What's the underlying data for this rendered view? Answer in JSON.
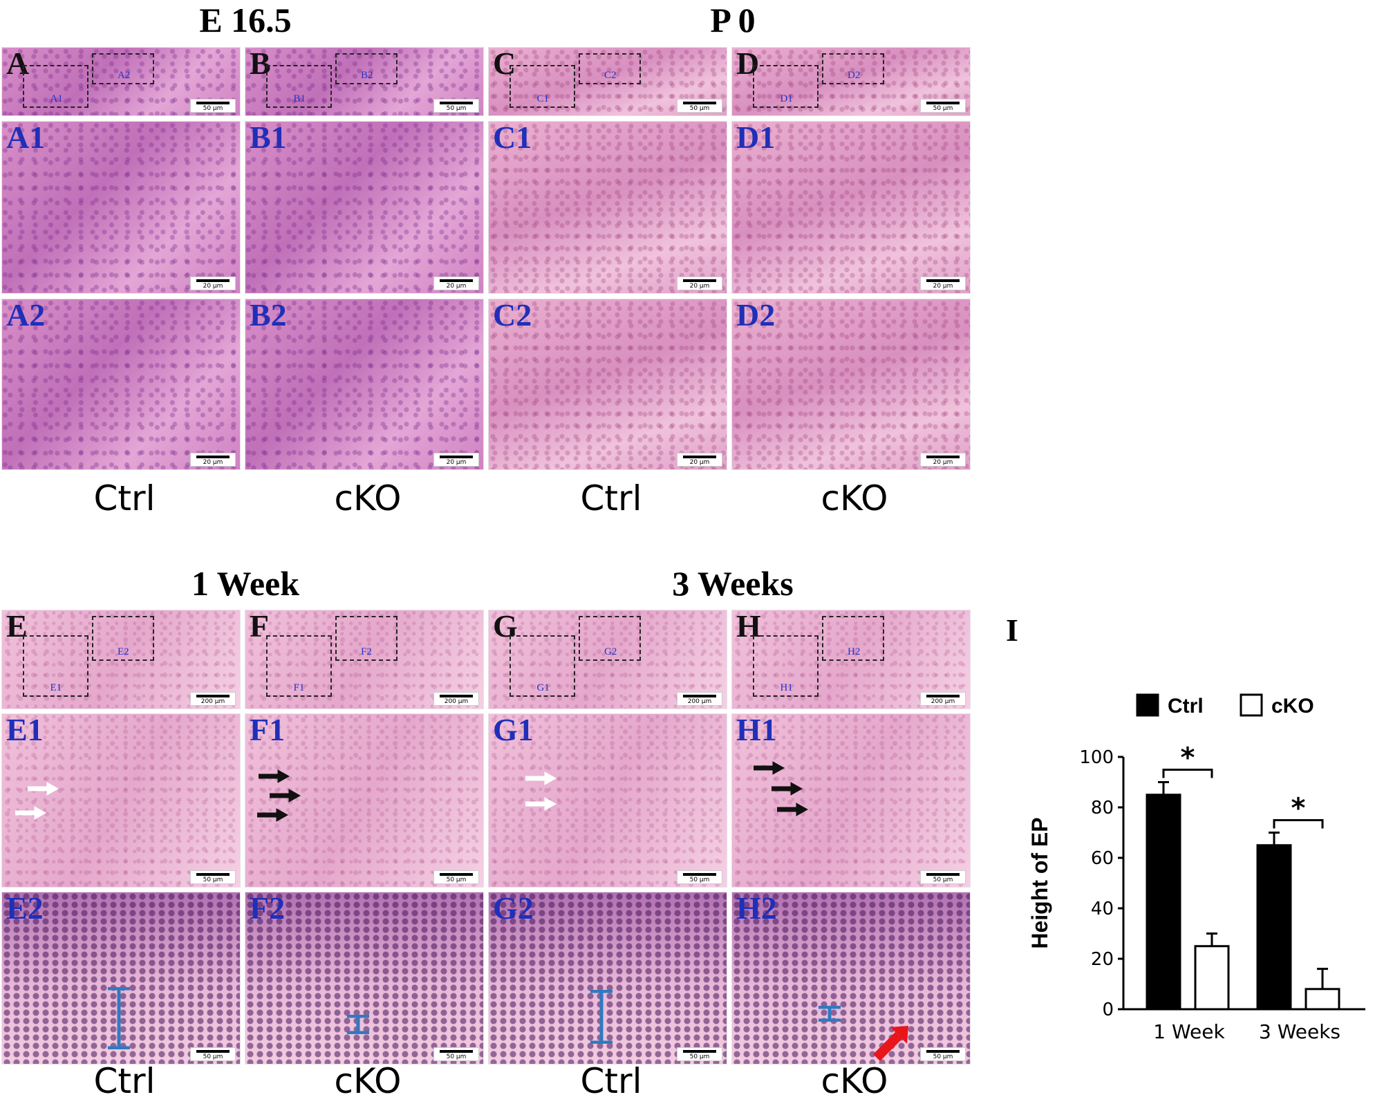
{
  "headings": {
    "top_left": "E 16.5",
    "top_right": "P 0",
    "bottom_left": "1 Week",
    "bottom_right": "3 Weeks"
  },
  "condition_labels": {
    "row1": [
      "Ctrl",
      "cKO",
      "Ctrl",
      "cKO"
    ],
    "row2": [
      "Ctrl",
      "cKO",
      "Ctrl",
      "cKO"
    ]
  },
  "panels_top": [
    {
      "col": 0,
      "row": 0,
      "letter": "A",
      "roi": [
        "A1",
        "A2"
      ],
      "scale": "50 µm"
    },
    {
      "col": 1,
      "row": 0,
      "letter": "B",
      "roi": [
        "B1",
        "B2"
      ],
      "scale": "50 µm"
    },
    {
      "col": 2,
      "row": 0,
      "letter": "C",
      "roi": [
        "C1",
        "C2"
      ],
      "scale": "50 µm"
    },
    {
      "col": 3,
      "row": 0,
      "letter": "D",
      "roi": [
        "D1",
        "D2"
      ],
      "scale": "50 µm"
    },
    {
      "col": 0,
      "row": 1,
      "letter": "A1",
      "scale": "20 µm"
    },
    {
      "col": 1,
      "row": 1,
      "letter": "B1",
      "scale": "20 µm"
    },
    {
      "col": 2,
      "row": 1,
      "letter": "C1",
      "scale": "20 µm"
    },
    {
      "col": 3,
      "row": 1,
      "letter": "D1",
      "scale": "20 µm"
    },
    {
      "col": 0,
      "row": 2,
      "letter": "A2",
      "scale": "20 µm"
    },
    {
      "col": 1,
      "row": 2,
      "letter": "B2",
      "scale": "20 µm"
    },
    {
      "col": 2,
      "row": 2,
      "letter": "C2",
      "scale": "20 µm"
    },
    {
      "col": 3,
      "row": 2,
      "letter": "D2",
      "scale": "20 µm"
    }
  ],
  "panels_bottom": [
    {
      "col": 0,
      "row": 0,
      "letter": "E",
      "roi": [
        "E1",
        "E2"
      ],
      "scale": "200 µm"
    },
    {
      "col": 1,
      "row": 0,
      "letter": "F",
      "roi": [
        "F1",
        "F2"
      ],
      "scale": "200 µm"
    },
    {
      "col": 2,
      "row": 0,
      "letter": "G",
      "roi": [
        "G1",
        "G2"
      ],
      "scale": "200 µm"
    },
    {
      "col": 3,
      "row": 0,
      "letter": "H",
      "roi": [
        "H1",
        "H2"
      ],
      "scale": "200 µm"
    },
    {
      "col": 0,
      "row": 1,
      "letter": "E1",
      "scale": "50 µm"
    },
    {
      "col": 1,
      "row": 1,
      "letter": "F1",
      "scale": "50 µm"
    },
    {
      "col": 2,
      "row": 1,
      "letter": "G1",
      "scale": "50 µm"
    },
    {
      "col": 3,
      "row": 1,
      "letter": "H1",
      "scale": "50 µm"
    },
    {
      "col": 0,
      "row": 2,
      "letter": "E2",
      "scale": "50 µm"
    },
    {
      "col": 1,
      "row": 2,
      "letter": "F2",
      "scale": "50 µm"
    },
    {
      "col": 2,
      "row": 2,
      "letter": "G2",
      "scale": "50 µm"
    },
    {
      "col": 3,
      "row": 2,
      "letter": "H2",
      "scale": "50 µm"
    }
  ],
  "chart_panel_letter": "I",
  "chart_data": {
    "type": "bar",
    "categories": [
      "1 Week",
      "3 Weeks"
    ],
    "series": [
      {
        "name": "Ctrl",
        "values": [
          85,
          65
        ],
        "errors": [
          5,
          5
        ],
        "fill": "#000000"
      },
      {
        "name": "cKO",
        "values": [
          25,
          8
        ],
        "errors": [
          5,
          8
        ],
        "fill": "#ffffff"
      }
    ],
    "ylabel": "Height of EP",
    "ylim": [
      0,
      100
    ],
    "yticks": [
      0,
      20,
      40,
      60,
      80,
      100
    ],
    "significance": [
      "*",
      "*"
    ],
    "legend_placement": "top"
  }
}
